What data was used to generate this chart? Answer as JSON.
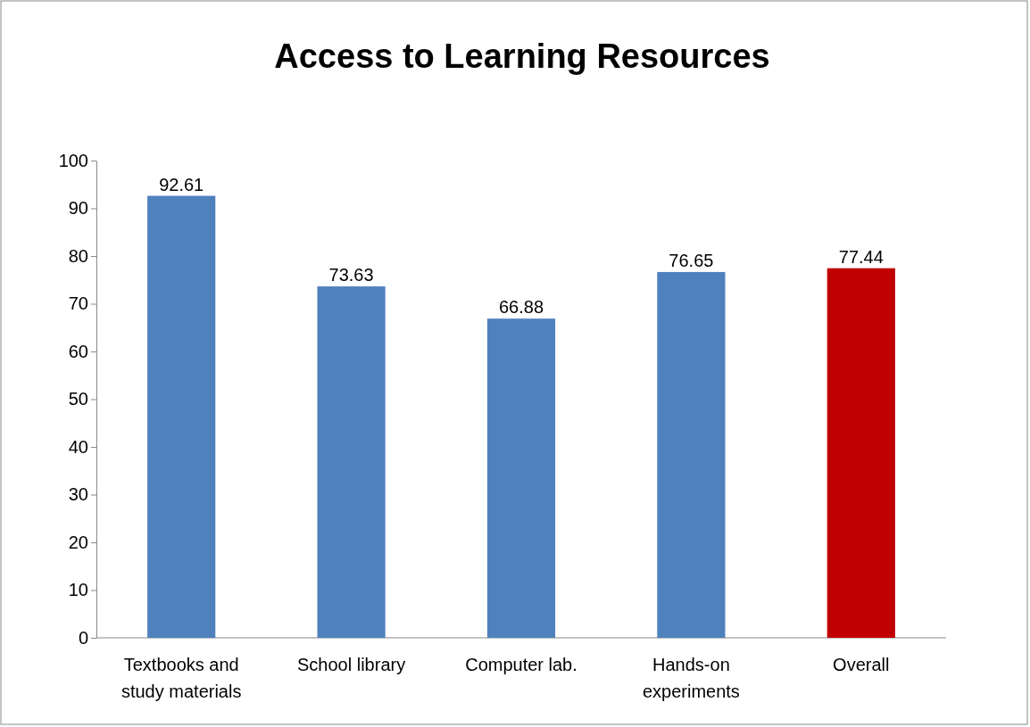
{
  "chart_data": {
    "type": "bar",
    "title": "Access to Learning Resources",
    "categories": [
      "Textbooks and study materials",
      "School library",
      "Computer lab.",
      "Hands-on experiments",
      "Overall"
    ],
    "values": [
      92.61,
      73.63,
      66.88,
      76.65,
      77.44
    ],
    "colors": [
      "#4f81bd",
      "#4f81bd",
      "#4f81bd",
      "#4f81bd",
      "#c00000"
    ],
    "ylim": [
      0,
      100
    ],
    "yticks": [
      0,
      10,
      20,
      30,
      40,
      50,
      60,
      70,
      80,
      90,
      100
    ],
    "data_labels": true
  }
}
